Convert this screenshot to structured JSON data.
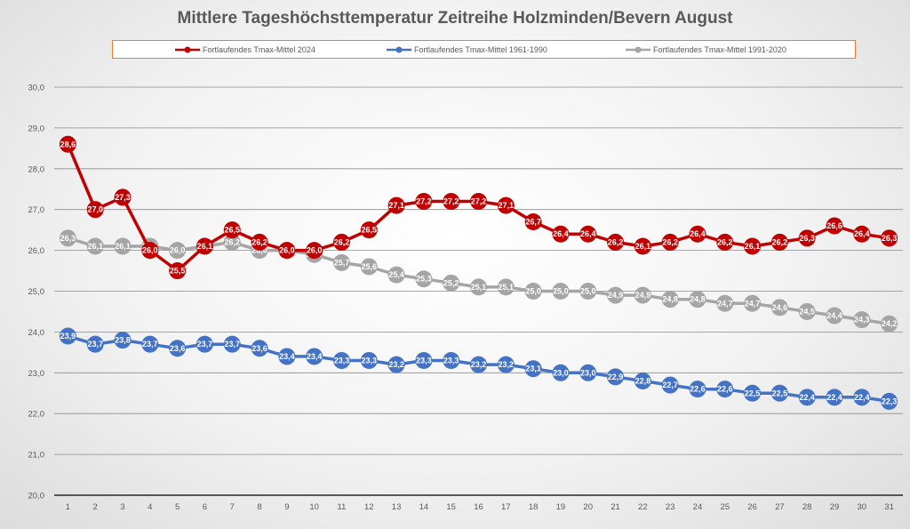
{
  "chart_data": {
    "type": "line",
    "title": "Mittlere Tageshöchsttemperatur Zeitreihe Holzminden/Bevern August",
    "xlabel": "",
    "ylabel": "",
    "ylim": [
      20.0,
      30.0
    ],
    "ytick_step": 1.0,
    "yticks": [
      "20,0",
      "21,0",
      "22,0",
      "23,0",
      "24,0",
      "25,0",
      "26,0",
      "27,0",
      "28,0",
      "29,0",
      "30,0"
    ],
    "grid": true,
    "legend_position": "top",
    "categories": [
      "1",
      "2",
      "3",
      "4",
      "5",
      "6",
      "7",
      "8",
      "9",
      "10",
      "11",
      "12",
      "13",
      "14",
      "15",
      "16",
      "17",
      "18",
      "19",
      "20",
      "21",
      "22",
      "23",
      "24",
      "25",
      "26",
      "27",
      "28",
      "29",
      "30",
      "31"
    ],
    "series": [
      {
        "name": "Fortlaufendes Tmax-Mittel 2024",
        "color": "#c00000",
        "labels": [
          "28,6",
          "27,0",
          "27,3",
          "26,0",
          "25,5",
          "26,1",
          "26,5",
          "26,2",
          "26,0",
          "26,0",
          "26,2",
          "26,5",
          "27,1",
          "27,2",
          "27,2",
          "27,2",
          "27,1",
          "26,7",
          "26,4",
          "26,4",
          "26,2",
          "26,1",
          "26,2",
          "26,4",
          "26,2",
          "26,1",
          "26,2",
          "26,3",
          "26,6",
          "26,4",
          "26,3"
        ],
        "values": [
          28.6,
          27.0,
          27.3,
          26.0,
          25.5,
          26.1,
          26.5,
          26.2,
          26.0,
          26.0,
          26.2,
          26.5,
          27.1,
          27.2,
          27.2,
          27.2,
          27.1,
          26.7,
          26.4,
          26.4,
          26.2,
          26.1,
          26.2,
          26.4,
          26.2,
          26.1,
          26.2,
          26.3,
          26.6,
          26.4,
          26.3
        ]
      },
      {
        "name": "Fortlaufendes Tmax-Mittel 1961-1990",
        "color": "#4472c4",
        "labels": [
          "23,9",
          "23,7",
          "23,8",
          "23,7",
          "23,6",
          "23,7",
          "23,7",
          "23,6",
          "23,4",
          "23,4",
          "23,3",
          "23,3",
          "23,2",
          "23,3",
          "23,3",
          "23,2",
          "23,2",
          "23,1",
          "23,0",
          "23,0",
          "22,9",
          "22,8",
          "22,7",
          "22,6",
          "22,6",
          "22,5",
          "22,5",
          "22,4",
          "22,4",
          "22,4",
          "22,3"
        ],
        "values": [
          23.9,
          23.7,
          23.8,
          23.7,
          23.6,
          23.7,
          23.7,
          23.6,
          23.4,
          23.4,
          23.3,
          23.3,
          23.2,
          23.3,
          23.3,
          23.2,
          23.2,
          23.1,
          23.0,
          23.0,
          22.9,
          22.8,
          22.7,
          22.6,
          22.6,
          22.5,
          22.5,
          22.4,
          22.4,
          22.4,
          22.3
        ]
      },
      {
        "name": "Fortlaufendes Tmax-Mittel 1991-2020",
        "color": "#a5a5a5",
        "labels": [
          "26,3",
          "26,1",
          "26,1",
          "26,1",
          "26,0",
          "26,1",
          "26,2",
          "26,0",
          "26,0",
          "25,9",
          "25,7",
          "25,6",
          "25,4",
          "25,3",
          "25,2",
          "25,1",
          "25,1",
          "25,0",
          "25,0",
          "25,0",
          "24,9",
          "24,9",
          "24,8",
          "24,8",
          "24,7",
          "24,7",
          "24,6",
          "24,5",
          "24,4",
          "24,3",
          "24,2"
        ],
        "values": [
          26.3,
          26.1,
          26.1,
          26.1,
          26.0,
          26.1,
          26.2,
          26.0,
          26.0,
          25.9,
          25.7,
          25.6,
          25.4,
          25.3,
          25.2,
          25.1,
          25.1,
          25.0,
          25.0,
          25.0,
          24.9,
          24.9,
          24.8,
          24.8,
          24.7,
          24.7,
          24.6,
          24.5,
          24.4,
          24.3,
          24.2
        ]
      }
    ]
  }
}
